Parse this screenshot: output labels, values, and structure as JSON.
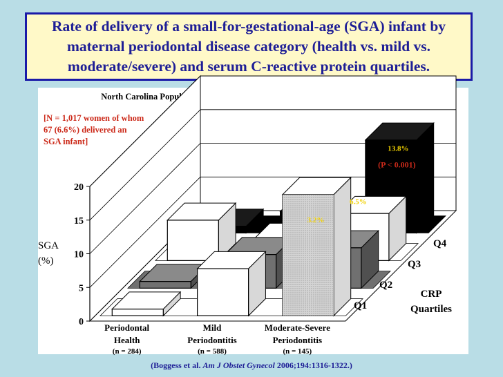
{
  "title": "Rate of delivery of a small-for-gestational-age (SGA) infant by maternal periodontal disease category (health vs. mild vs. moderate/severe) and serum C-reactive protein quartiles.",
  "subtitle": "North Carolina Population (University of North Carolina & Duke Medical Center)",
  "note_lines": [
    "[N = 1,017 women of whom",
    "67 (6.6%) delivered an",
    "SGA infant]"
  ],
  "pvalue_label": "(P < 0.001)",
  "citation": {
    "prefix": "(Boggess et al. ",
    "journal": "Am J Obstet Gynecol",
    "suffix": " 2006;194:1316-1322.)"
  },
  "colors": {
    "title_text": "#1e1e96",
    "title_bg": "#fff9c8",
    "note": "#cc2a1a",
    "label": "#f0d000",
    "background": "#b9dde6"
  },
  "chart_data": {
    "type": "bar",
    "variant": "3d-grouped",
    "ylabel": "SGA (%)",
    "ylim": [
      0,
      20
    ],
    "yticks": [
      "0",
      "5",
      "10",
      "15",
      "20"
    ],
    "categories": [
      {
        "name_lines": [
          "Periodontal",
          "Health"
        ],
        "n": "(n = 284)"
      },
      {
        "name_lines": [
          "Mild",
          "Periodontitis"
        ],
        "n": "(n = 588)"
      },
      {
        "name_lines": [
          "Moderate-Severe",
          "Periodontitis"
        ],
        "n": "(n = 145)"
      }
    ],
    "depth_axis_title_lines": [
      "CRP",
      "Quartiles"
    ],
    "series": [
      {
        "name": "Q1",
        "values": [
          1,
          7,
          18
        ]
      },
      {
        "name": "Q2",
        "values": [
          1,
          5,
          6
        ]
      },
      {
        "name": "Q3",
        "values": [
          6,
          3,
          7
        ]
      },
      {
        "name": "Q4",
        "values": [
          1,
          3.2,
          6.5
        ]
      }
    ],
    "value_labels": [
      {
        "series": "Q4",
        "category": 1,
        "text": "3.2%"
      },
      {
        "series": "Q4",
        "category": 2,
        "text": "6.5%"
      },
      {
        "series": "Q4",
        "category": 2,
        "text": "13.8%"
      }
    ],
    "extra_bar": {
      "series": "Q4",
      "category": 2,
      "value": 13.8,
      "label": "13.8%"
    }
  }
}
